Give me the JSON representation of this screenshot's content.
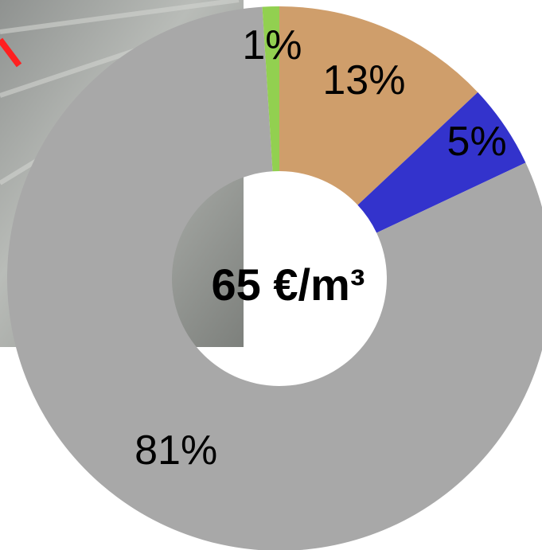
{
  "chart_data": {
    "type": "donut",
    "center_label": "65 €/m³",
    "values": [
      13,
      5,
      81,
      1
    ],
    "value_labels": [
      "13%",
      "5%",
      "81%",
      "1%"
    ],
    "colors": [
      "#cf9e6b",
      "#3333cc",
      "#a8a8a8",
      "#92d050"
    ]
  }
}
